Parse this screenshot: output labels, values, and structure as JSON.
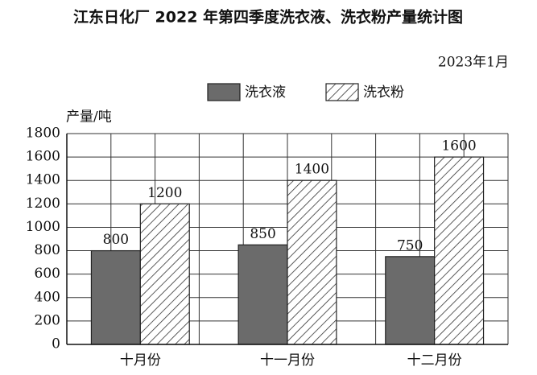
{
  "chart_data": {
    "type": "bar",
    "title": "江东日化厂 2022 年第四季度洗衣液、洗衣粉产量统计图",
    "subtitle": "2023年1月",
    "y_label": "产量/吨",
    "categories": [
      "十月份",
      "十一月份",
      "十二月份"
    ],
    "series": [
      {
        "name": "洗衣液",
        "color": "#6b6b6b",
        "hatch": false,
        "values": [
          800,
          850,
          750
        ]
      },
      {
        "name": "洗衣粉",
        "color": "#333333",
        "hatch": true,
        "values": [
          1200,
          1400,
          1600
        ]
      }
    ],
    "ylim": [
      0,
      1800
    ],
    "yticks": [
      0,
      200,
      400,
      600,
      800,
      1000,
      1200,
      1400,
      1600,
      1800
    ],
    "grid": true
  }
}
